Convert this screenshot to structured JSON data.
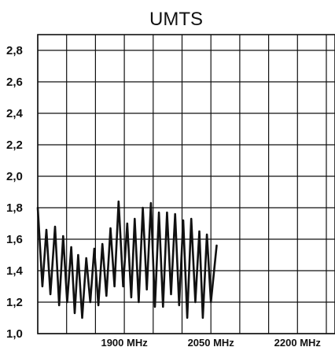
{
  "chart_data": {
    "type": "line",
    "title": "UMTS",
    "xlabel": "",
    "ylabel": "",
    "xlim": [
      1750,
      2265
    ],
    "ylim": [
      1.0,
      2.9
    ],
    "y_ticks": [
      {
        "value": 1.0,
        "label": "1,0"
      },
      {
        "value": 1.2,
        "label": "1,2"
      },
      {
        "value": 1.4,
        "label": "1,4"
      },
      {
        "value": 1.6,
        "label": "1,6"
      },
      {
        "value": 1.8,
        "label": "1,8"
      },
      {
        "value": 2.0,
        "label": "2,0"
      },
      {
        "value": 2.2,
        "label": "2,2"
      },
      {
        "value": 2.4,
        "label": "2,4"
      },
      {
        "value": 2.6,
        "label": "2,6"
      },
      {
        "value": 2.8,
        "label": "2,8"
      }
    ],
    "x_ticks": [
      {
        "value": 1900,
        "label": "1900 MHz"
      },
      {
        "value": 2050,
        "label": "2050 MHz"
      },
      {
        "value": 2200,
        "label": "2200 MHz"
      }
    ],
    "x_gridlines": [
      1750,
      1800,
      1850,
      1900,
      1950,
      2000,
      2050,
      2100,
      2150,
      2200,
      2250
    ],
    "grid": true,
    "legend": "none",
    "series": [
      {
        "color": "#111111",
        "points": [
          [
            1750,
            1.8
          ],
          [
            1758,
            1.3
          ],
          [
            1765,
            1.66
          ],
          [
            1772,
            1.25
          ],
          [
            1780,
            1.68
          ],
          [
            1787,
            1.18
          ],
          [
            1794,
            1.62
          ],
          [
            1801,
            1.2
          ],
          [
            1808,
            1.55
          ],
          [
            1814,
            1.13
          ],
          [
            1820,
            1.5
          ],
          [
            1827,
            1.1
          ],
          [
            1834,
            1.48
          ],
          [
            1841,
            1.2
          ],
          [
            1848,
            1.54
          ],
          [
            1855,
            1.18
          ],
          [
            1862,
            1.57
          ],
          [
            1869,
            1.24
          ],
          [
            1876,
            1.67
          ],
          [
            1883,
            1.3
          ],
          [
            1890,
            1.84
          ],
          [
            1898,
            1.3
          ],
          [
            1905,
            1.7
          ],
          [
            1912,
            1.23
          ],
          [
            1918,
            1.73
          ],
          [
            1925,
            1.2
          ],
          [
            1932,
            1.8
          ],
          [
            1939,
            1.28
          ],
          [
            1946,
            1.83
          ],
          [
            1953,
            1.17
          ],
          [
            1960,
            1.77
          ],
          [
            1967,
            1.17
          ],
          [
            1974,
            1.77
          ],
          [
            1981,
            1.25
          ],
          [
            1988,
            1.76
          ],
          [
            1995,
            1.18
          ],
          [
            2002,
            1.72
          ],
          [
            2009,
            1.1
          ],
          [
            2016,
            1.73
          ],
          [
            2023,
            1.2
          ],
          [
            2030,
            1.65
          ],
          [
            2036,
            1.1
          ],
          [
            2043,
            1.63
          ],
          [
            2050,
            1.2
          ],
          [
            2060,
            1.56
          ]
        ]
      }
    ]
  }
}
